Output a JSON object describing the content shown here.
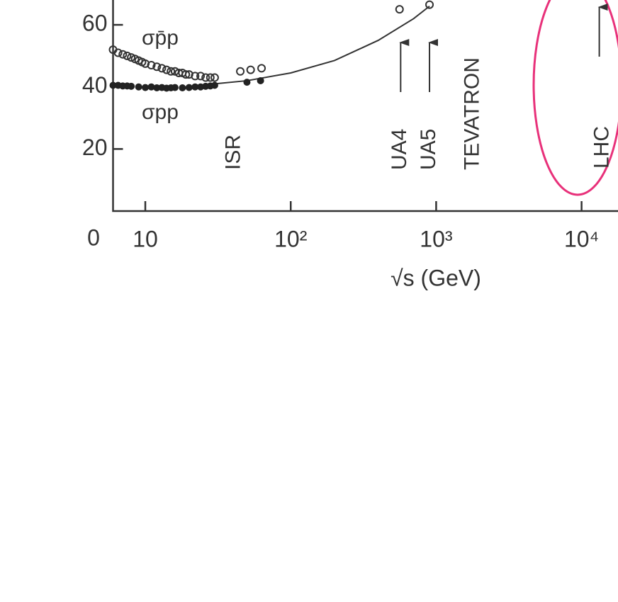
{
  "chart_data": {
    "type": "scatter",
    "xlabel": "√s (GeV)",
    "origin_label": "0",
    "log_x": true,
    "xlim": [
      6,
      17800
    ],
    "ylim": [
      0,
      68
    ],
    "xticks": [
      10,
      {
        "value": 100,
        "label": "10²"
      },
      {
        "value": 1000,
        "label": "10³"
      },
      {
        "value": 10000,
        "label": "10⁴"
      }
    ],
    "yticks": [
      20,
      40,
      60
    ],
    "series": [
      {
        "name": "σp̄p",
        "color": "#333333",
        "marker": "open",
        "x": [
          6,
          6.5,
          7,
          7.5,
          8,
          8.5,
          9,
          9.5,
          10,
          11,
          12,
          13,
          14,
          15,
          16,
          17,
          18,
          19,
          20,
          22,
          24,
          26,
          28,
          30,
          45,
          53,
          63,
          560,
          900
        ],
        "values": [
          52,
          51,
          50.5,
          50,
          49.5,
          49,
          48.5,
          48,
          47.5,
          47,
          46.5,
          46,
          45.5,
          45,
          45,
          44.5,
          44.5,
          44,
          44,
          43.5,
          43.5,
          43,
          43,
          43,
          45,
          45.5,
          46,
          65,
          66.5
        ]
      },
      {
        "name": "σpp",
        "color": "#222222",
        "marker": "filled",
        "x": [
          6,
          6.5,
          7,
          7.5,
          8,
          9,
          10,
          11,
          12,
          13,
          14,
          15,
          16,
          18,
          20,
          22,
          24,
          26,
          28,
          30,
          50,
          62
        ],
        "values": [
          40.5,
          40.5,
          40.3,
          40.3,
          40.2,
          40,
          39.8,
          40,
          39.7,
          39.8,
          39.6,
          39.7,
          39.8,
          39.7,
          39.8,
          40,
          40,
          40.2,
          40.3,
          40.5,
          41.5,
          42
        ]
      }
    ],
    "fit": {
      "x": [
        30,
        50,
        100,
        200,
        400,
        700,
        900
      ],
      "values": [
        41,
        42,
        44.5,
        48.5,
        55,
        62,
        66
      ]
    },
    "annotations": [
      {
        "text": "ISR",
        "x": 41,
        "arrow": false
      },
      {
        "text": "UA4",
        "x": 570,
        "arrow": true
      },
      {
        "text": "UA5",
        "x": 900,
        "arrow": true
      },
      {
        "text": "TEVATRON",
        "x": 1800,
        "arrow": false
      },
      {
        "text": "LHC",
        "x": 14000,
        "arrow": true
      }
    ]
  }
}
